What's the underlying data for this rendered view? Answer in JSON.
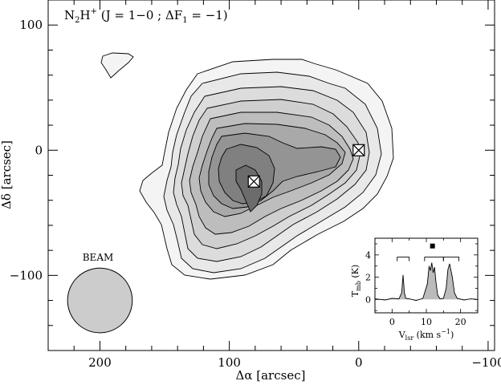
{
  "chart_data": [
    {
      "type": "contour",
      "title_parts": {
        "mol": "N",
        "sub1": "2",
        "h": "H",
        "sup": "+",
        "rest1": " (J = 1−0 ; ΔF",
        "sub2": "1",
        "rest2": " = −1)"
      },
      "xlabel": "Δα [arcsec]",
      "ylabel": "Δδ [arcsec]",
      "xlim": [
        240,
        -105
      ],
      "ylim": [
        -160,
        120
      ],
      "x_ticks": [
        "200",
        "100",
        "0",
        "−100"
      ],
      "y_ticks": [
        "100",
        "0",
        "−100"
      ],
      "contour_levels": 9,
      "fill_colors": [
        "#f4f4f4",
        "#e8e8e8",
        "#dcdcdc",
        "#cfcfcf",
        "#bdbdbd",
        "#a9a9a9",
        "#949494",
        "#808080",
        "#6c6c6c"
      ],
      "markers": [
        {
          "shape": "crossed-square",
          "x": 81,
          "y": -25
        },
        {
          "shape": "crossed-square",
          "x": 0,
          "y": 0
        }
      ],
      "beam_label": "BEAM",
      "beam_center": [
        200,
        -120
      ],
      "beam_diameter_arcsec": 50,
      "beam_color": "#cccccc"
    },
    {
      "type": "line",
      "name": "inset-spectrum",
      "xlabel_parts": {
        "v": "V",
        "vsub": "lsr",
        "unit": " (km s",
        "usup": "−1",
        "close": ")"
      },
      "ylabel_parts": {
        "t": "T",
        "tsub": "mb",
        "unit": " (K)"
      },
      "xlim": [
        -5,
        25
      ],
      "ylim": [
        -1.2,
        5.5
      ],
      "x_ticks": [
        "0",
        "10",
        "20"
      ],
      "y_ticks": [
        "0",
        "2",
        "4"
      ],
      "x": [
        -5,
        -2,
        0,
        2,
        2.8,
        3.2,
        3.6,
        4,
        5,
        7,
        9,
        10.3,
        10.8,
        11.2,
        11.6,
        12,
        12.4,
        12.8,
        13.3,
        14,
        15,
        15.8,
        16.3,
        16.8,
        17.2,
        17.6,
        18.2,
        19,
        21,
        23,
        25
      ],
      "y": [
        0.05,
        -0.05,
        0.1,
        0.05,
        0.6,
        2.2,
        0.6,
        0.1,
        0.05,
        -0.1,
        0.1,
        1.4,
        3.0,
        2.6,
        3.3,
        2.4,
        2.9,
        1.6,
        0.4,
        0.05,
        0.1,
        1.0,
        2.7,
        3.2,
        2.6,
        2.0,
        0.6,
        0.1,
        -0.05,
        0.05,
        0.0
      ],
      "fill_color": "#bbbbbb",
      "hfs_groups": [
        {
          "x1": 1.5,
          "x2": 5.0
        },
        {
          "x1": 9.5,
          "x2": 15.0
        },
        {
          "x1": 15.0,
          "x2": 19.5
        }
      ],
      "marker": {
        "shape": "filled-square",
        "x": 11.8
      }
    }
  ]
}
